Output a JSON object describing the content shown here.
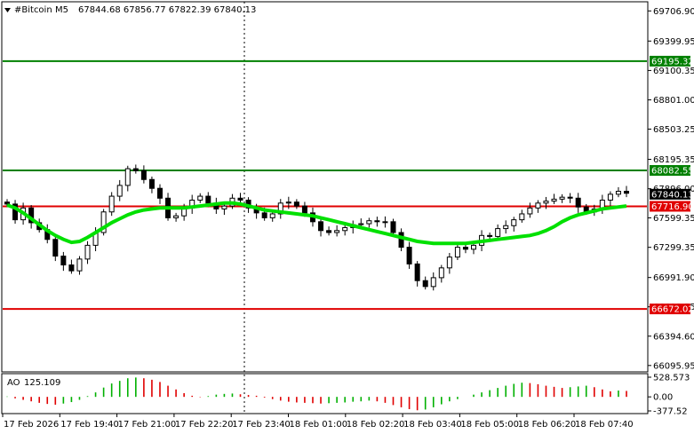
{
  "header": {
    "symbol": "#Bitcoin",
    "timeframe": "M5",
    "ohlc": "67844.68 67856.77 67822.39 67840.13",
    "marker_icon": "triangle-down-icon"
  },
  "chart_data": {
    "type": "candlestick",
    "title": "#Bitcoin,M5  67844.68 67856.77 67822.39 67840.13",
    "ylim": [
      66040,
      69800
    ],
    "y_ticks": [
      "69706.90",
      "69399.95",
      "69100.35",
      "68801.00",
      "68503.25",
      "68195.35",
      "67896.00",
      "67599.35",
      "67299.35",
      "66991.90",
      "66693.55",
      "66394.60",
      "66095.95"
    ],
    "x_ticks": [
      "17 Feb 2026",
      "17 Feb 19:40",
      "17 Feb 21:00",
      "17 Feb 22:20",
      "17 Feb 23:40",
      "18 Feb 01:00",
      "18 Feb 02:20",
      "18 Feb 03:40",
      "18 Feb 05:00",
      "18 Feb 06:20",
      "18 Feb 07:40"
    ],
    "horizontal_levels": [
      {
        "label": "69195.32",
        "value": 69195.32,
        "color": "#008000"
      },
      {
        "label": "68082.55",
        "value": 68082.55,
        "color": "#008000"
      },
      {
        "label": "67716.90",
        "value": 67716.9,
        "color": "#e00000"
      },
      {
        "label": "66672.02",
        "value": 66672.02,
        "color": "#e00000"
      }
    ],
    "current_price": {
      "label": "67840.13",
      "value": 67840.13
    },
    "moving_average_color": "#00e000",
    "candle_color": "#000000",
    "closes": [
      67740,
      67580,
      67700,
      67550,
      67480,
      67380,
      67210,
      67120,
      67060,
      67180,
      67320,
      67450,
      67660,
      67820,
      67930,
      68100,
      68080,
      67990,
      67900,
      67800,
      67600,
      67620,
      67700,
      67780,
      67820,
      67750,
      67690,
      67720,
      67800,
      67780,
      67700,
      67650,
      67600,
      67640,
      67750,
      67760,
      67720,
      67650,
      67560,
      67470,
      67450,
      67470,
      67500,
      67530,
      67540,
      67570,
      67560,
      67560,
      67450,
      67300,
      67130,
      66960,
      66900,
      66990,
      67090,
      67200,
      67300,
      67280,
      67320,
      67420,
      67410,
      67490,
      67520,
      67580,
      67640,
      67700,
      67750,
      67770,
      67790,
      67810,
      67800,
      67710,
      67660,
      67690,
      67780,
      67840,
      67870,
      67850
    ],
    "ma_values": [
      67730,
      67700,
      67650,
      67590,
      67530,
      67470,
      67420,
      67380,
      67350,
      67360,
      67400,
      67450,
      67500,
      67550,
      67590,
      67630,
      67660,
      67680,
      67690,
      67700,
      67700,
      67700,
      67700,
      67710,
      67720,
      67730,
      67740,
      67750,
      67750,
      67740,
      67720,
      67700,
      67680,
      67670,
      67660,
      67650,
      67640,
      67630,
      67620,
      67600,
      67580,
      67560,
      67540,
      67520,
      67500,
      67480,
      67460,
      67440,
      67420,
      67400,
      67380,
      67360,
      67350,
      67340,
      67340,
      67340,
      67340,
      67340,
      67350,
      67360,
      67370,
      67380,
      67390,
      67400,
      67410,
      67420,
      67440,
      67470,
      67510,
      67560,
      67600,
      67630,
      67650,
      67670,
      67690,
      67700,
      67710,
      67720
    ]
  },
  "indicator": {
    "name": "AO",
    "value": "125.109",
    "ylim": [
      -377.52,
      528.573
    ],
    "y_ticks": [
      "528.573",
      "0.00",
      "-377.52"
    ],
    "values": [
      10,
      -40,
      -80,
      -120,
      -160,
      -190,
      -210,
      -180,
      -140,
      -80,
      20,
      120,
      250,
      360,
      430,
      500,
      520,
      500,
      460,
      400,
      300,
      200,
      100,
      30,
      -10,
      20,
      60,
      80,
      90,
      70,
      50,
      30,
      -20,
      -60,
      -100,
      -130,
      -150,
      -160,
      -170,
      -180,
      -170,
      -160,
      -150,
      -130,
      -120,
      -100,
      -120,
      -160,
      -220,
      -280,
      -330,
      -360,
      -340,
      -280,
      -200,
      -120,
      -60,
      0,
      60,
      120,
      180,
      240,
      300,
      350,
      380,
      370,
      340,
      300,
      270,
      240,
      260,
      280,
      300,
      260,
      200,
      150,
      170,
      160
    ]
  }
}
